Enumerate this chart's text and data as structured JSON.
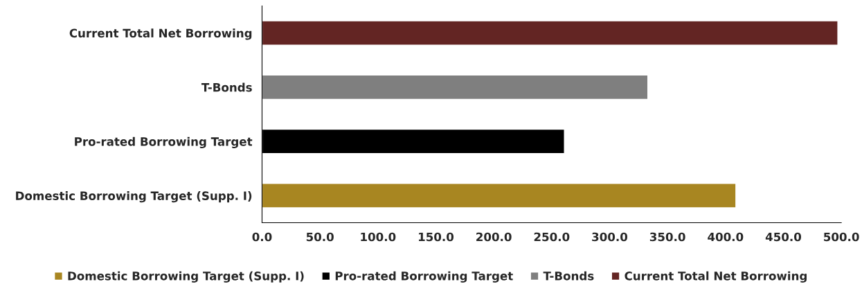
{
  "chart_data": {
    "type": "bar",
    "orientation": "horizontal",
    "categories": [
      "Current Total Net Borrowing",
      "T-Bonds",
      "Pro-rated Borrowing Target",
      "Domestic Borrowing Target (Supp. I)"
    ],
    "series": [
      {
        "name": "Domestic Borrowing Target (Supp. I)",
        "color": "#a88621",
        "values": [
          null,
          null,
          null,
          409
        ]
      },
      {
        "name": "Pro-rated Borrowing Target",
        "color": "#000000",
        "values": [
          null,
          null,
          261,
          null
        ]
      },
      {
        "name": "T-Bonds",
        "color": "#7f7f7f",
        "values": [
          null,
          333,
          null,
          null
        ]
      },
      {
        "name": "Current Total Net Borrowing",
        "color": "#632523",
        "values": [
          497,
          null,
          null,
          null
        ]
      }
    ],
    "xlim": [
      0,
      500
    ],
    "xticks": [
      {
        "value": 0,
        "label": "0.0"
      },
      {
        "value": 50,
        "label": "50.0"
      },
      {
        "value": 100,
        "label": "100.0"
      },
      {
        "value": 150,
        "label": "150.0"
      },
      {
        "value": 200,
        "label": "200.0"
      },
      {
        "value": 250,
        "label": "250.0"
      },
      {
        "value": 300,
        "label": "300.0"
      },
      {
        "value": 350,
        "label": "350.0"
      },
      {
        "value": 400,
        "label": "400.0"
      },
      {
        "value": 450,
        "label": "450.0"
      },
      {
        "value": 500,
        "label": "500.0"
      }
    ],
    "grid": false,
    "legend": "bottom"
  }
}
